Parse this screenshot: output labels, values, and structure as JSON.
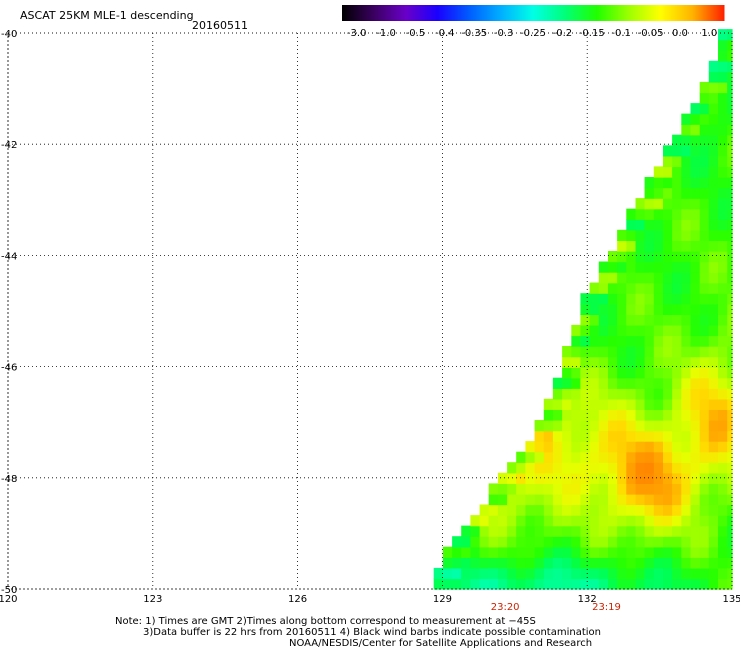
{
  "chart_data": {
    "type": "heatmap",
    "title": "ASCAT 25KM MLE-1 descending",
    "date": "20160511",
    "xlim": [
      120,
      135
    ],
    "ylim": [
      -50,
      -40
    ],
    "x_ticks": [
      "120",
      "123",
      "126",
      "129",
      "132",
      "135"
    ],
    "y_ticks": [
      "-40",
      "-42",
      "-44",
      "-46",
      "-48",
      "-50"
    ],
    "colorbar_labels": [
      "-3.0",
      "-1.0",
      "-0.5",
      "-0.4",
      "-0.35",
      "-0.3",
      "-0.25",
      "-0.2",
      "-0.15",
      "-0.1",
      "-0.05",
      "0.0",
      "1.0"
    ],
    "colorbar_colors": [
      "#000000",
      "#3a0060",
      "#6a00c8",
      "#1a00ff",
      "#005cff",
      "#00b0ff",
      "#00ffe6",
      "#00ff7a",
      "#20ff00",
      "#9cff00",
      "#ffff00",
      "#ffb400",
      "#ff2000"
    ],
    "swath_edge": [
      [
        128.7,
        -50
      ],
      [
        129.2,
        -49.1
      ],
      [
        130.8,
        -47.4
      ],
      [
        131.3,
        -46.4
      ],
      [
        131.9,
        -44.8
      ],
      [
        133.2,
        -42.8
      ],
      [
        134.2,
        -41.3
      ],
      [
        134.8,
        -40.2
      ]
    ],
    "field_regions": [
      {
        "name": "orange core",
        "value": -0.03,
        "center": [
          133.3,
          -48.1
        ]
      },
      {
        "name": "orange east band",
        "value": -0.04,
        "center": [
          134.6,
          -46.8
        ]
      },
      {
        "name": "yellow central",
        "value": -0.08,
        "center": [
          132.2,
          -47.5
        ]
      },
      {
        "name": "green north",
        "value": -0.15,
        "center": [
          134.0,
          -43.0
        ]
      },
      {
        "name": "green-cyan south",
        "value": -0.22,
        "center": [
          131.5,
          -49.8
        ]
      }
    ],
    "pass_times": [
      {
        "x": 130.3,
        "label": "23:20"
      },
      {
        "x": 132.4,
        "label": "23:19"
      }
    ],
    "grid": true,
    "colors": {
      "time_label": "#cc2200",
      "grid": "#000000"
    }
  },
  "notes": {
    "line1": "Note: 1) Times are GMT 2)Times along bottom correspond to measurement at −45S",
    "line2": "3)Data buffer is 22 hrs from 20160511 4) Black wind barbs indicate possible contamination",
    "line3": "NOAA/NESDIS/Center for Satellite Applications and Research"
  }
}
